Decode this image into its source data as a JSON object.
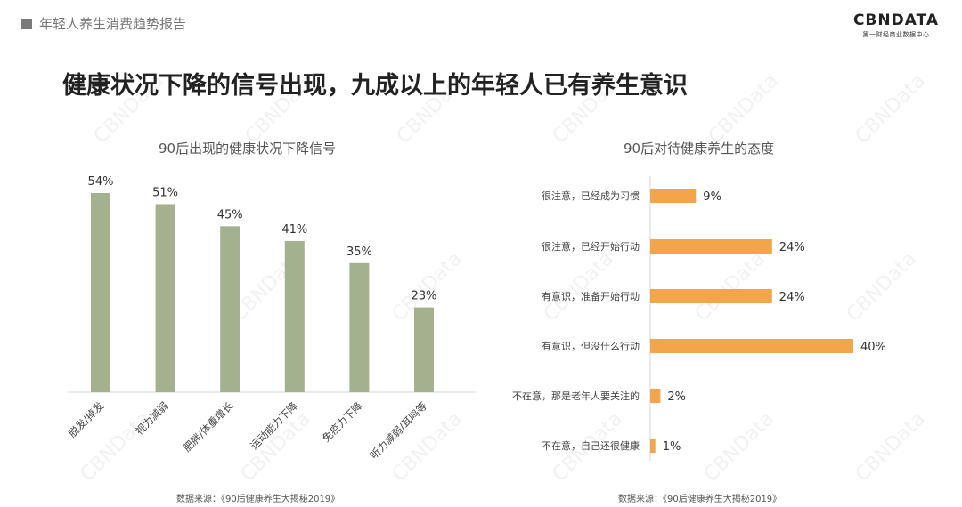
{
  "header": {
    "report_title": "年轻人养生消费趋势报告",
    "logo_main": "CBNDATA",
    "logo_sub": "第一财经商业数据中心"
  },
  "headline": "健康状况下降的信号出现，九成以上的年轻人已有养生意识",
  "watermark": "CBNData",
  "colors": {
    "bar_left": "#a3b18f",
    "bar_right": "#f3a54b"
  },
  "chart_data": [
    {
      "type": "bar",
      "title": "90后出现的健康状况下降信号",
      "categories": [
        "脱发/掉发",
        "视力减弱",
        "肥胖/体重增长",
        "运动能力下降",
        "免疫力下降",
        "听力减弱/耳鸣等"
      ],
      "values": [
        54,
        51,
        45,
        41,
        35,
        23
      ],
      "value_labels": [
        "54%",
        "51%",
        "45%",
        "41%",
        "35%",
        "23%"
      ],
      "ylim": [
        0,
        60
      ],
      "source": "数据来源：《90后健康养生大揭秘2019》"
    },
    {
      "type": "bar",
      "orientation": "horizontal",
      "title": "90后对待健康养生的态度",
      "categories": [
        "很注意，已经成为习惯",
        "很注意，已经开始行动",
        "有意识，准备开始行动",
        "有意识，但没什么行动",
        "不在意，那是老年人要关注的",
        "不在意，自己还很健康"
      ],
      "values": [
        9,
        24,
        24,
        40,
        2,
        1
      ],
      "value_labels": [
        "9%",
        "24%",
        "24%",
        "40%",
        "2%",
        "1%"
      ],
      "xlim": [
        0,
        40
      ],
      "source": "数据来源：《90后健康养生大揭秘2019》"
    }
  ]
}
